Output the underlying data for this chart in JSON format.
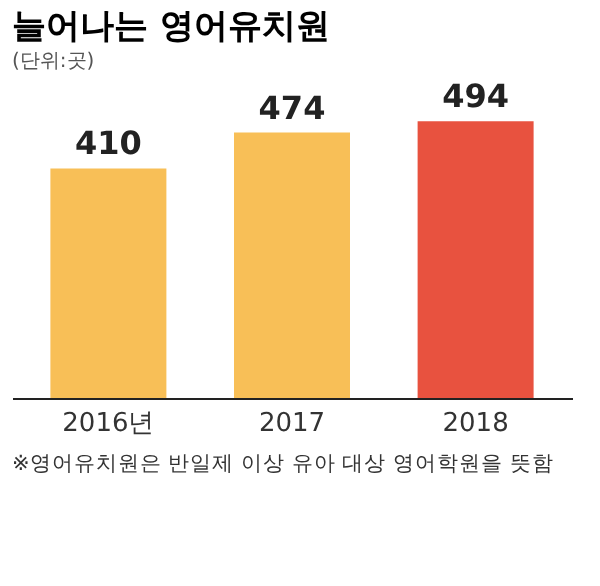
{
  "chart_data": {
    "type": "bar",
    "title": "늘어나는 영어유치원",
    "subtitle": "(단위:곳)",
    "categories": [
      "2016년",
      "2017",
      "2018"
    ],
    "values": [
      410,
      474,
      494
    ],
    "colors": [
      "#f8bf57",
      "#f8bf57",
      "#e8523f"
    ],
    "data_labels": true,
    "annotations": [
      "※영어유치원은 반일제 이상 유아 대상 영어학원을 뜻함"
    ]
  }
}
